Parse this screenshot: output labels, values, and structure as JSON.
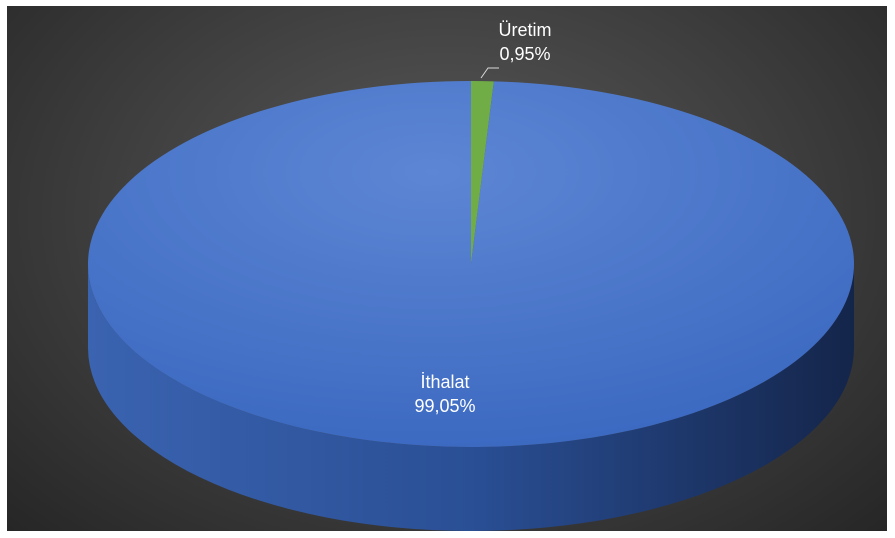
{
  "chart_data": {
    "type": "pie",
    "style": "3d",
    "categories": [
      "Üretim",
      "İthalat"
    ],
    "values": [
      0.95,
      99.05
    ],
    "value_labels": [
      "0,95%",
      "99,05%"
    ],
    "colors": [
      "#70ad47",
      "#4472c4"
    ],
    "legend": "none",
    "background": "#404040"
  }
}
